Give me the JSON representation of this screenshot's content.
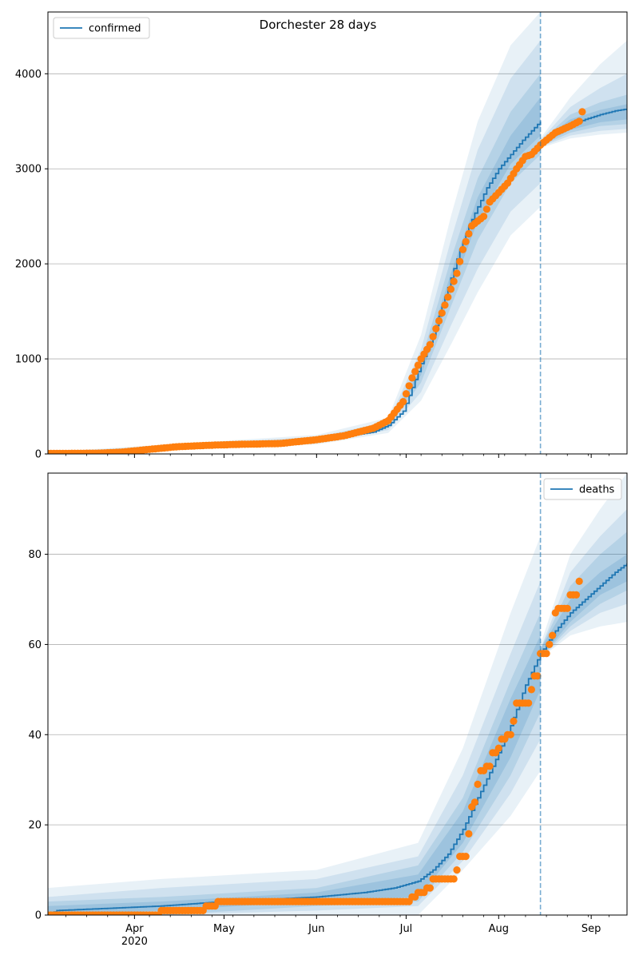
{
  "colors": {
    "model": "#1f77b4",
    "observed": "#ff7f0e",
    "band": "#1f77b4",
    "grid": "#b0b0b0",
    "vline": "#1f77b4"
  },
  "chart_data": [
    {
      "type": "line",
      "title": "Dorchester 28 days",
      "legend": {
        "label": "confirmed",
        "position": "top-left"
      },
      "x_range": [
        "2020-03-03",
        "2020-09-13"
      ],
      "ylim": [
        0,
        4650
      ],
      "grid": "y",
      "y_ticks": [
        0,
        1000,
        2000,
        3000,
        4000
      ],
      "y_tick_labels": [
        "0",
        "1000",
        "2000",
        "3000",
        "4000"
      ],
      "x_ticks": [
        {
          "date": "2020-04-01",
          "label": "Apr"
        },
        {
          "date": "2020-05-01",
          "label": "May"
        },
        {
          "date": "2020-06-01",
          "label": "Jun"
        },
        {
          "date": "2020-07-01",
          "label": "Jul"
        },
        {
          "date": "2020-08-01",
          "label": "Aug"
        },
        {
          "date": "2020-09-01",
          "label": "Sep"
        }
      ],
      "x_year_label": "",
      "forecast_start": "2020-08-15",
      "model": {
        "name": "confirmed",
        "points": [
          [
            "2020-03-03",
            5
          ],
          [
            "2020-03-15",
            8
          ],
          [
            "2020-03-25",
            15
          ],
          [
            "2020-04-01",
            30
          ],
          [
            "2020-04-10",
            60
          ],
          [
            "2020-04-20",
            85
          ],
          [
            "2020-05-01",
            100
          ],
          [
            "2020-05-15",
            110
          ],
          [
            "2020-05-25",
            125
          ],
          [
            "2020-06-01",
            150
          ],
          [
            "2020-06-10",
            180
          ],
          [
            "2020-06-20",
            230
          ],
          [
            "2020-06-25",
            300
          ],
          [
            "2020-06-30",
            450
          ],
          [
            "2020-07-03",
            700
          ],
          [
            "2020-07-06",
            950
          ],
          [
            "2020-07-10",
            1250
          ],
          [
            "2020-07-13",
            1550
          ],
          [
            "2020-07-16",
            1850
          ],
          [
            "2020-07-19",
            2150
          ],
          [
            "2020-07-22",
            2400
          ],
          [
            "2020-07-25",
            2600
          ],
          [
            "2020-07-28",
            2800
          ],
          [
            "2020-08-01",
            3000
          ],
          [
            "2020-08-05",
            3150
          ],
          [
            "2020-08-09",
            3300
          ],
          [
            "2020-08-12",
            3400
          ],
          [
            "2020-08-15",
            3500
          ]
        ]
      },
      "forecast": {
        "points": [
          [
            "2020-08-15",
            3260
          ],
          [
            "2020-08-20",
            3380
          ],
          [
            "2020-08-25",
            3460
          ],
          [
            "2020-08-30",
            3520
          ],
          [
            "2020-09-04",
            3570
          ],
          [
            "2020-09-09",
            3610
          ],
          [
            "2020-09-13",
            3630
          ]
        ]
      },
      "bands": [
        {
          "opacity": 0.1,
          "x": [
            "2020-03-03",
            "2020-06-01",
            "2020-06-25",
            "2020-07-06",
            "2020-07-16",
            "2020-07-25",
            "2020-08-05",
            "2020-08-15"
          ],
          "lo": [
            0,
            100,
            220,
            560,
            1150,
            1700,
            2300,
            2600
          ],
          "hi": [
            20,
            200,
            380,
            1250,
            2500,
            3500,
            4300,
            4650
          ]
        },
        {
          "opacity": 0.12,
          "x": [
            "2020-03-03",
            "2020-06-01",
            "2020-06-25",
            "2020-07-06",
            "2020-07-16",
            "2020-07-25",
            "2020-08-05",
            "2020-08-15"
          ],
          "lo": [
            0,
            120,
            250,
            650,
            1350,
            1950,
            2550,
            2850
          ],
          "hi": [
            15,
            180,
            340,
            1100,
            2250,
            3200,
            3950,
            4350
          ]
        },
        {
          "opacity": 0.14,
          "x": [
            "2020-03-03",
            "2020-06-01",
            "2020-06-25",
            "2020-07-06",
            "2020-07-16",
            "2020-07-25",
            "2020-08-05",
            "2020-08-15"
          ],
          "lo": [
            2,
            135,
            275,
            750,
            1550,
            2250,
            2850,
            3150
          ],
          "hi": [
            12,
            165,
            310,
            980,
            2050,
            2900,
            3600,
            4000
          ]
        },
        {
          "opacity": 0.16,
          "x": [
            "2020-03-03",
            "2020-06-01",
            "2020-06-25",
            "2020-07-06",
            "2020-07-16",
            "2020-07-25",
            "2020-08-05",
            "2020-08-15"
          ],
          "lo": [
            3,
            145,
            290,
            830,
            1700,
            2450,
            3050,
            3350
          ],
          "hi": [
            10,
            155,
            300,
            900,
            1900,
            2700,
            3350,
            3750
          ]
        }
      ],
      "forecast_bands": [
        {
          "opacity": 0.1,
          "x": [
            "2020-08-15",
            "2020-08-25",
            "2020-09-04",
            "2020-09-13"
          ],
          "lo": [
            3220,
            3320,
            3360,
            3380
          ],
          "hi": [
            3320,
            3750,
            4100,
            4350
          ]
        },
        {
          "opacity": 0.12,
          "x": [
            "2020-08-15",
            "2020-08-25",
            "2020-09-04",
            "2020-09-13"
          ],
          "lo": [
            3230,
            3350,
            3400,
            3420
          ],
          "hi": [
            3300,
            3650,
            3850,
            4000
          ]
        },
        {
          "opacity": 0.14,
          "x": [
            "2020-08-15",
            "2020-08-25",
            "2020-09-04",
            "2020-09-13"
          ],
          "lo": [
            3240,
            3380,
            3450,
            3470
          ],
          "hi": [
            3290,
            3570,
            3700,
            3780
          ]
        },
        {
          "opacity": 0.16,
          "x": [
            "2020-08-15",
            "2020-08-25",
            "2020-09-04",
            "2020-09-13"
          ],
          "lo": [
            3250,
            3410,
            3490,
            3520
          ],
          "hi": [
            3280,
            3520,
            3620,
            3680
          ]
        }
      ],
      "observed": {
        "name": "observed",
        "anchors": [
          [
            "2020-03-03",
            5
          ],
          [
            "2020-03-20",
            8
          ],
          [
            "2020-03-28",
            20
          ],
          [
            "2020-04-05",
            45
          ],
          [
            "2020-04-15",
            75
          ],
          [
            "2020-04-25",
            90
          ],
          [
            "2020-05-05",
            100
          ],
          [
            "2020-05-20",
            110
          ],
          [
            "2020-06-01",
            150
          ],
          [
            "2020-06-10",
            190
          ],
          [
            "2020-06-20",
            270
          ],
          [
            "2020-06-25",
            350
          ],
          [
            "2020-06-30",
            550
          ],
          [
            "2020-07-03",
            800
          ],
          [
            "2020-07-06",
            1000
          ],
          [
            "2020-07-09",
            1150
          ],
          [
            "2020-07-12",
            1400
          ],
          [
            "2020-07-15",
            1650
          ],
          [
            "2020-07-18",
            1900
          ],
          [
            "2020-07-20",
            2150
          ],
          [
            "2020-07-23",
            2400
          ],
          [
            "2020-07-27",
            2500
          ],
          [
            "2020-07-29",
            2650
          ],
          [
            "2020-08-01",
            2750
          ],
          [
            "2020-08-04",
            2850
          ],
          [
            "2020-08-07",
            3000
          ],
          [
            "2020-08-10",
            3130
          ],
          [
            "2020-08-12",
            3150
          ],
          [
            "2020-08-15",
            3250
          ],
          [
            "2020-08-20",
            3380
          ],
          [
            "2020-08-25",
            3450
          ],
          [
            "2020-08-28",
            3500
          ],
          [
            "2020-08-29",
            3600
          ]
        ]
      }
    },
    {
      "type": "line",
      "title": "",
      "legend": {
        "label": "deaths",
        "position": "top-right"
      },
      "x_range": [
        "2020-03-03",
        "2020-09-13"
      ],
      "ylim": [
        0,
        98
      ],
      "grid": "y",
      "y_ticks": [
        0,
        20,
        40,
        60,
        80
      ],
      "y_tick_labels": [
        "0",
        "20",
        "40",
        "60",
        "80"
      ],
      "x_ticks": [
        {
          "date": "2020-04-01",
          "label": "Apr"
        },
        {
          "date": "2020-05-01",
          "label": "May"
        },
        {
          "date": "2020-06-01",
          "label": "Jun"
        },
        {
          "date": "2020-07-01",
          "label": "Jul"
        },
        {
          "date": "2020-08-01",
          "label": "Aug"
        },
        {
          "date": "2020-09-01",
          "label": "Sep"
        }
      ],
      "x_year_label": "2020",
      "forecast_start": "2020-08-15",
      "model": {
        "name": "deaths",
        "points": [
          [
            "2020-03-03",
            0
          ],
          [
            "2020-03-06",
            1
          ],
          [
            "2020-04-10",
            2
          ],
          [
            "2020-05-01",
            3
          ],
          [
            "2020-06-01",
            4
          ],
          [
            "2020-06-17",
            5
          ],
          [
            "2020-06-27",
            6
          ],
          [
            "2020-07-05",
            7.5
          ],
          [
            "2020-07-10",
            10
          ],
          [
            "2020-07-15",
            13.5
          ],
          [
            "2020-07-20",
            19
          ],
          [
            "2020-07-25",
            26
          ],
          [
            "2020-07-30",
            33
          ],
          [
            "2020-08-05",
            42
          ],
          [
            "2020-08-10",
            51
          ],
          [
            "2020-08-15",
            58
          ]
        ]
      },
      "forecast": {
        "points": [
          [
            "2020-08-15",
            58
          ],
          [
            "2020-08-20",
            63
          ],
          [
            "2020-08-25",
            67
          ],
          [
            "2020-08-30",
            70
          ],
          [
            "2020-09-04",
            73
          ],
          [
            "2020-09-09",
            76
          ],
          [
            "2020-09-13",
            78
          ]
        ]
      },
      "bands": [
        {
          "opacity": 0.1,
          "x": [
            "2020-03-03",
            "2020-04-10",
            "2020-06-01",
            "2020-07-05",
            "2020-07-20",
            "2020-08-05",
            "2020-08-15"
          ],
          "lo": [
            0,
            0,
            0,
            0,
            10,
            22,
            32
          ],
          "hi": [
            6,
            8,
            10,
            16,
            37,
            67,
            84
          ]
        },
        {
          "opacity": 0.12,
          "x": [
            "2020-03-03",
            "2020-04-10",
            "2020-06-01",
            "2020-07-05",
            "2020-07-20",
            "2020-08-05",
            "2020-08-15"
          ],
          "lo": [
            0,
            0,
            1,
            2,
            12,
            27,
            39
          ],
          "hi": [
            4,
            6,
            8,
            13,
            31,
            58,
            74
          ]
        },
        {
          "opacity": 0.14,
          "x": [
            "2020-03-03",
            "2020-04-10",
            "2020-06-01",
            "2020-07-05",
            "2020-07-20",
            "2020-08-05",
            "2020-08-15"
          ],
          "lo": [
            0,
            0,
            2,
            3,
            14,
            31,
            45
          ],
          "hi": [
            3,
            4,
            6,
            11,
            26,
            52,
            67
          ]
        },
        {
          "opacity": 0.16,
          "x": [
            "2020-03-03",
            "2020-04-10",
            "2020-06-01",
            "2020-07-05",
            "2020-07-20",
            "2020-08-05",
            "2020-08-15"
          ],
          "lo": [
            0,
            1,
            3,
            4,
            16,
            35,
            50
          ],
          "hi": [
            2,
            3,
            5,
            9,
            23,
            48,
            62
          ]
        }
      ],
      "forecast_bands": [
        {
          "opacity": 0.1,
          "x": [
            "2020-08-15",
            "2020-08-25",
            "2020-09-04",
            "2020-09-13"
          ],
          "lo": [
            57,
            62,
            64,
            65
          ],
          "hi": [
            60,
            80,
            90,
            98
          ]
        },
        {
          "opacity": 0.12,
          "x": [
            "2020-08-15",
            "2020-08-25",
            "2020-09-04",
            "2020-09-13"
          ],
          "lo": [
            57,
            63,
            67,
            69
          ],
          "hi": [
            59,
            76,
            84,
            90
          ]
        },
        {
          "opacity": 0.14,
          "x": [
            "2020-08-15",
            "2020-08-25",
            "2020-09-04",
            "2020-09-13"
          ],
          "lo": [
            57,
            64,
            69,
            72
          ],
          "hi": [
            59,
            73,
            80,
            85
          ]
        },
        {
          "opacity": 0.16,
          "x": [
            "2020-08-15",
            "2020-08-25",
            "2020-09-04",
            "2020-09-13"
          ],
          "lo": [
            57,
            65,
            71,
            74
          ],
          "hi": [
            59,
            70,
            76,
            80
          ]
        }
      ],
      "observed": {
        "name": "observed",
        "anchors": [
          [
            "2020-03-03",
            0
          ],
          [
            "2020-04-09",
            0
          ],
          [
            "2020-04-10",
            1
          ],
          [
            "2020-04-24",
            1
          ],
          [
            "2020-04-25",
            2
          ],
          [
            "2020-04-28",
            2
          ],
          [
            "2020-04-29",
            3
          ],
          [
            "2020-06-30",
            3
          ],
          [
            "2020-07-03",
            4
          ],
          [
            "2020-07-05",
            5
          ],
          [
            "2020-07-08",
            6
          ],
          [
            "2020-07-10",
            8
          ],
          [
            "2020-07-17",
            8
          ],
          [
            "2020-07-18",
            10
          ],
          [
            "2020-07-19",
            13
          ],
          [
            "2020-07-21",
            13
          ],
          [
            "2020-07-22",
            18
          ],
          [
            "2020-07-23",
            24
          ],
          [
            "2020-07-24",
            25
          ],
          [
            "2020-07-25",
            29
          ],
          [
            "2020-07-26",
            32
          ],
          [
            "2020-07-28",
            33
          ],
          [
            "2020-07-30",
            36
          ],
          [
            "2020-08-01",
            37
          ],
          [
            "2020-08-02",
            39
          ],
          [
            "2020-08-04",
            40
          ],
          [
            "2020-08-06",
            43
          ],
          [
            "2020-08-07",
            47
          ],
          [
            "2020-08-11",
            47
          ],
          [
            "2020-08-12",
            50
          ],
          [
            "2020-08-13",
            53
          ],
          [
            "2020-08-14",
            53
          ],
          [
            "2020-08-15",
            58
          ],
          [
            "2020-08-17",
            58
          ],
          [
            "2020-08-18",
            60
          ],
          [
            "2020-08-19",
            62
          ],
          [
            "2020-08-20",
            67
          ],
          [
            "2020-08-21",
            68
          ],
          [
            "2020-08-24",
            68
          ],
          [
            "2020-08-25",
            71
          ],
          [
            "2020-08-28",
            74
          ]
        ]
      }
    }
  ]
}
